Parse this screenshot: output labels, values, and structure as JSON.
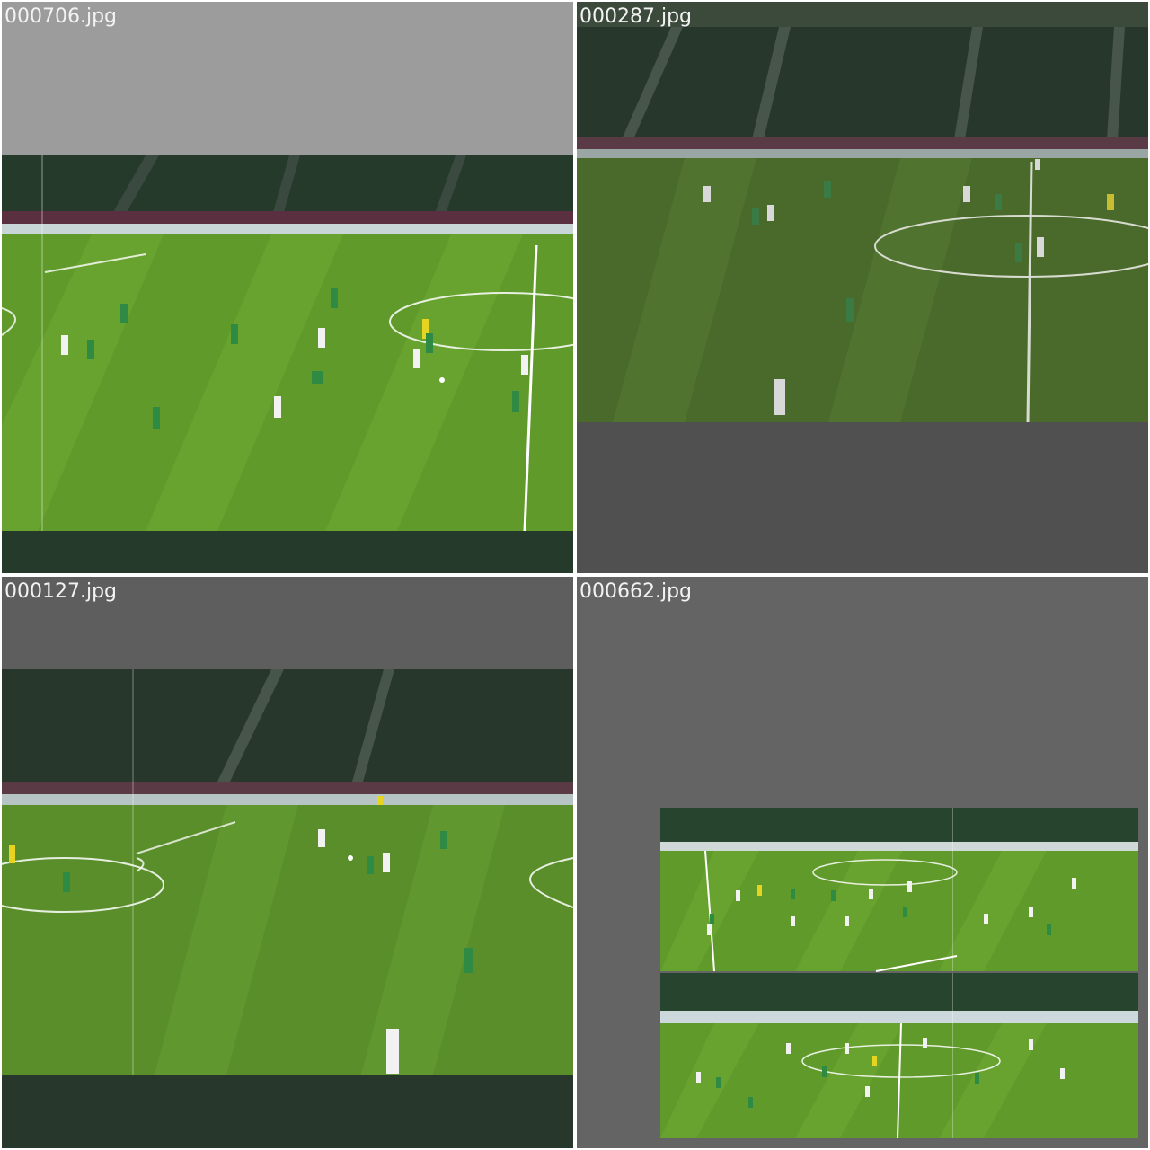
{
  "grid": {
    "tiles": [
      {
        "filename": "000706.jpg"
      },
      {
        "filename": "000287.jpg"
      },
      {
        "filename": "000127.jpg"
      },
      {
        "filename": "000662.jpg"
      }
    ]
  },
  "colors": {
    "pitch": "#5f9a2a",
    "pitch_light": "#6ea934",
    "stands": "#1f2a22",
    "kit_home": "#2f8a44",
    "kit_away": "#f2f2f2",
    "referee": "#e6d420"
  }
}
